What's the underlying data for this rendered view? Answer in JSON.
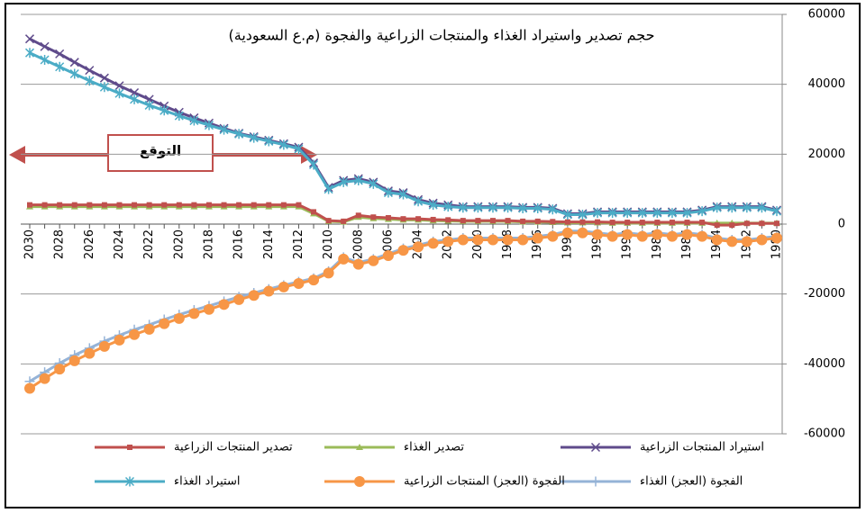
{
  "chart_data": {
    "type": "line",
    "title": "حجم تصدير واستيراد الغذاء والمنتجات الزراعية والفجوة (م.ع السعودية)",
    "annotation": "التوقع",
    "categories": [
      "2030",
      null,
      "2028",
      null,
      "2026",
      null,
      "2024",
      null,
      "2022",
      null,
      "2020",
      null,
      "2018",
      null,
      "2016",
      null,
      "2014",
      null,
      "2012",
      null,
      "2010",
      null,
      "2008",
      null,
      "2006",
      null,
      "2004",
      null,
      "2002",
      null,
      "2000",
      null,
      "1998",
      null,
      "1996",
      null,
      "1994",
      null,
      "1992",
      null,
      "1990",
      null,
      "1988",
      null,
      "1986",
      null,
      "1984",
      null,
      "1982",
      null,
      "1980"
    ],
    "ylim": [
      -60000,
      60000
    ],
    "yticks": [
      60000,
      40000,
      20000,
      0,
      -20000,
      -40000,
      -60000
    ],
    "grid": true,
    "series": [
      {
        "name": "استيراد المنتجات الزراعية",
        "color": "#5f4b8b",
        "marker": "x",
        "values": [
          53000,
          50800,
          48700,
          46300,
          44000,
          41800,
          39600,
          37600,
          35700,
          33800,
          32000,
          30400,
          28900,
          27400,
          26000,
          25000,
          24000,
          23000,
          22000,
          17500,
          10500,
          12500,
          13000,
          12000,
          9500,
          9000,
          7000,
          6000,
          5500,
          5000,
          5000,
          5000,
          5000,
          4800,
          4800,
          4500,
          3000,
          3000,
          3500,
          3500,
          3500,
          3500,
          3500,
          3500,
          3500,
          4000,
          5000,
          5000,
          5000,
          5000,
          4000
        ]
      },
      {
        "name": "تصدير الغذاء",
        "color": "#9bbb59",
        "marker": "triangle",
        "values": [
          5000,
          5000,
          5000,
          5000,
          5000,
          5000,
          5000,
          5000,
          5000,
          5000,
          5000,
          5000,
          5000,
          5000,
          5000,
          5000,
          5000,
          5000,
          5000,
          3000,
          800,
          600,
          2000,
          1600,
          1400,
          1200,
          1200,
          1000,
          900,
          800,
          800,
          800,
          800,
          600,
          600,
          500,
          400,
          400,
          400,
          300,
          300,
          300,
          300,
          300,
          300,
          300,
          300,
          300,
          300,
          300,
          300
        ]
      },
      {
        "name": "تصدير المنتجات الزراعية",
        "color": "#c0504d",
        "marker": "square",
        "values": [
          5500,
          5500,
          5500,
          5500,
          5500,
          5500,
          5500,
          5500,
          5500,
          5500,
          5500,
          5500,
          5500,
          5500,
          5500,
          5500,
          5500,
          5500,
          5500,
          3500,
          1000,
          800,
          2500,
          2000,
          1800,
          1500,
          1500,
          1300,
          1200,
          1000,
          1000,
          1000,
          1000,
          800,
          800,
          700,
          600,
          600,
          600,
          500,
          500,
          500,
          500,
          500,
          500,
          500,
          -300,
          -300,
          200,
          200,
          200
        ]
      },
      {
        "name": "استيراد الغذاء",
        "color": "#4bacc6",
        "marker": "star",
        "values": [
          49000,
          47000,
          45000,
          43000,
          41000,
          39200,
          37400,
          35700,
          34000,
          32500,
          31000,
          29600,
          28300,
          27000,
          25800,
          24700,
          23700,
          22700,
          21500,
          17000,
          10000,
          12000,
          12500,
          11500,
          9000,
          8500,
          6500,
          5500,
          5000,
          4700,
          4700,
          4700,
          4700,
          4500,
          4500,
          4200,
          2700,
          2700,
          3200,
          3200,
          3200,
          3200,
          3200,
          3200,
          3200,
          3700,
          4700,
          4700,
          4700,
          4700,
          3700
        ]
      },
      {
        "name": "الفجوة (العجز) الغذاء",
        "color": "#95b3d7",
        "marker": "plus",
        "values": [
          -45000,
          -42400,
          -39800,
          -37500,
          -35500,
          -33500,
          -31800,
          -30200,
          -28800,
          -27300,
          -25900,
          -24600,
          -23400,
          -22100,
          -20800,
          -19700,
          -18600,
          -17500,
          -16500,
          -15500,
          -13500,
          -9500,
          -11000,
          -10000,
          -8500,
          -7000,
          -6000,
          -5000,
          -4500,
          -4000,
          -4000,
          -4000,
          -4000,
          -4000,
          -3500,
          -3000,
          -2000,
          -2000,
          -2500,
          -3000,
          -2500,
          -3000,
          -2500,
          -3000,
          -2500,
          -3000,
          -4000,
          -4500,
          -4500,
          -4000,
          -3500
        ]
      },
      {
        "name": "الفجوة (العجز) المنتجات الزراعية",
        "color": "#f79646",
        "marker": "circle",
        "values": [
          -47000,
          -44200,
          -41500,
          -39100,
          -37000,
          -35000,
          -33200,
          -31600,
          -30100,
          -28500,
          -27000,
          -25600,
          -24400,
          -23000,
          -21600,
          -20400,
          -19200,
          -18000,
          -17000,
          -16000,
          -14000,
          -10000,
          -11500,
          -10500,
          -9000,
          -7500,
          -6500,
          -5500,
          -5000,
          -4500,
          -4500,
          -4500,
          -4500,
          -4500,
          -4000,
          -3500,
          -2500,
          -2500,
          -3000,
          -3500,
          -3000,
          -3500,
          -3000,
          -3500,
          -3000,
          -3500,
          -4500,
          -5000,
          -5000,
          -4500,
          -4000
        ]
      }
    ]
  }
}
